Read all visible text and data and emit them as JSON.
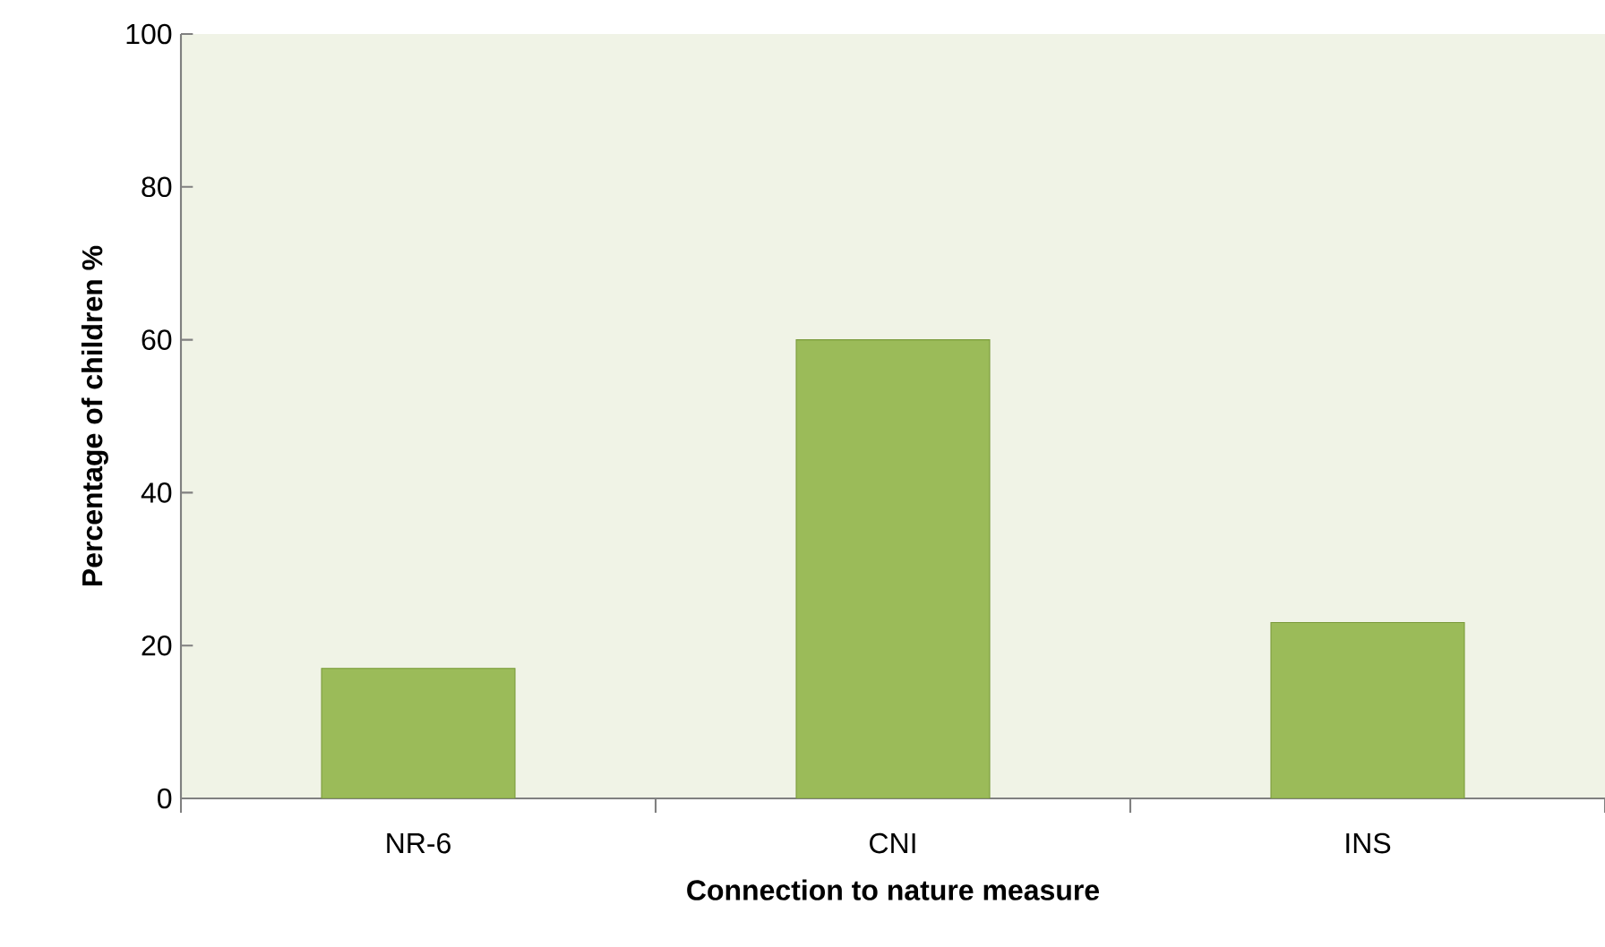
{
  "chart_data": {
    "type": "bar",
    "xlabel": "Connection to nature measure",
    "ylabel": "Percentage of children %",
    "categories": [
      "NR-6",
      "CNI",
      "INS"
    ],
    "values": [
      17,
      60,
      23
    ],
    "color": "#9bbb59",
    "ylim": [
      0,
      100
    ],
    "yticks": [
      0,
      20,
      40,
      60,
      80,
      100
    ]
  }
}
